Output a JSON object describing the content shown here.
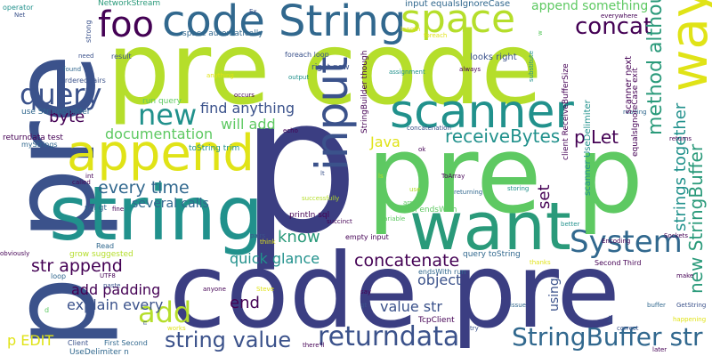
{
  "palette": {
    "dark_purple": "#440154",
    "indigo": "#3b528b",
    "slate_blue": "#31688e",
    "teal": "#21918c",
    "sea_green": "#2a9a7a",
    "green": "#5ec962",
    "lime": "#b5de2b",
    "yellow": "#e0e317"
  },
  "words": [
    {
      "text": "pre code",
      "color": "#b5de2b"
    },
    {
      "text": "code pre",
      "color": "#3b3e82"
    },
    {
      "text": "pre p",
      "color": "#5ec962"
    },
    {
      "text": "p",
      "color": "#3b3e82"
    },
    {
      "text": "p pre",
      "color": "#3b528b"
    },
    {
      "text": "string",
      "color": "#21918c"
    },
    {
      "text": "want",
      "color": "#2a9a7a"
    },
    {
      "text": "code String",
      "color": "#31688e"
    },
    {
      "text": "space",
      "color": "#b5de2b"
    },
    {
      "text": "way",
      "color": "#e0e317"
    },
    {
      "text": "foo",
      "color": "#440154"
    },
    {
      "text": "append",
      "color": "#e0e317"
    },
    {
      "text": "input",
      "color": "#3b528b"
    },
    {
      "text": "scanner",
      "color": "#21918c"
    },
    {
      "text": "query",
      "color": "#3b528b"
    },
    {
      "text": "new",
      "color": "#21918c"
    },
    {
      "text": "System",
      "color": "#31688e"
    },
    {
      "text": "returndata",
      "color": "#3b528b"
    },
    {
      "text": "StringBuffer str",
      "color": "#31688e"
    },
    {
      "text": "string value",
      "color": "#3b528b"
    },
    {
      "text": "add",
      "color": "#b5de2b"
    },
    {
      "text": "concat",
      "color": "#440154"
    },
    {
      "text": "method although",
      "color": "#2a9a7a"
    },
    {
      "text": "receiveBytes",
      "color": "#21918c"
    },
    {
      "text": "p Let",
      "color": "#440154"
    },
    {
      "text": "strings together",
      "color": "#21918c"
    },
    {
      "text": "new StringBuffer",
      "color": "#2a9a7a"
    },
    {
      "text": "concatenate",
      "color": "#440154"
    },
    {
      "text": "every time",
      "color": "#31688e"
    },
    {
      "text": "documentation",
      "color": "#5ec962"
    },
    {
      "text": "byte",
      "color": "#440154"
    },
    {
      "text": "find anything",
      "color": "#3b528b"
    },
    {
      "text": "will add",
      "color": "#5ec962"
    },
    {
      "text": "know",
      "color": "#2a9a7a"
    },
    {
      "text": "str append",
      "color": "#440154"
    },
    {
      "text": "quick glance",
      "color": "#21918c"
    },
    {
      "text": "Java",
      "color": "#e0e317"
    },
    {
      "text": "object",
      "color": "#3b528b"
    },
    {
      "text": "value str",
      "color": "#3b528b"
    },
    {
      "text": "end",
      "color": "#440154"
    },
    {
      "text": "add padding",
      "color": "#440154"
    },
    {
      "text": "explain every",
      "color": "#3b528b"
    },
    {
      "text": "p EDIT",
      "color": "#e0e317"
    },
    {
      "text": "several calls",
      "color": "#31688e"
    },
    {
      "text": "append something",
      "color": "#5ec962"
    },
    {
      "text": "NetworkStream",
      "color": "#2a9a7a"
    },
    {
      "text": "input equalsIgnoreCase",
      "color": "#31688e"
    },
    {
      "text": "Ex",
      "color": "#3b528b"
    },
    {
      "text": "space automatically",
      "color": "#31688e"
    },
    {
      "text": "foreach loop",
      "color": "#3b528b"
    },
    {
      "text": "right now",
      "color": "#3b528b"
    },
    {
      "text": "looks right",
      "color": "#3b528b"
    },
    {
      "text": "use StringBuilder",
      "color": "#31688e"
    },
    {
      "text": "returndata test",
      "color": "#440154"
    },
    {
      "text": "myStrings",
      "color": "#31688e"
    },
    {
      "text": "orderedpairs",
      "color": "#3b528b"
    },
    {
      "text": "result",
      "color": "#3b528b"
    },
    {
      "text": "run query",
      "color": "#5ec962"
    },
    {
      "text": "sql gt",
      "color": "#31688e"
    },
    {
      "text": "println sql",
      "color": "#440154"
    },
    {
      "text": "toString trim",
      "color": "#21918c"
    },
    {
      "text": "empty input",
      "color": "#440154"
    },
    {
      "text": "trim endsWith",
      "color": "#5ec962"
    },
    {
      "text": "query toString",
      "color": "#31688e"
    },
    {
      "text": "endsWith run",
      "color": "#31688e"
    },
    {
      "text": "TcpClient",
      "color": "#440154"
    },
    {
      "text": "First Second",
      "color": "#31688e"
    },
    {
      "text": "Second Third",
      "color": "#440154"
    },
    {
      "text": "UseDelimiter n",
      "color": "#31688e"
    },
    {
      "text": "Client",
      "color": "#3b528b"
    },
    {
      "text": "grow suggested",
      "color": "#b5de2b"
    },
    {
      "text": "Read",
      "color": "#31688e"
    },
    {
      "text": "UTF8",
      "color": "#440154"
    },
    {
      "text": "paste",
      "color": "#3b528b"
    },
    {
      "text": "fine",
      "color": "#440154"
    },
    {
      "text": "pairs",
      "color": "#3b528b"
    },
    {
      "text": "think",
      "color": "#e0e317"
    },
    {
      "text": "there'll",
      "color": "#440154"
    },
    {
      "text": "succinct",
      "color": "#440154"
    },
    {
      "text": "successfully",
      "color": "#b5de2b"
    },
    {
      "text": "ToArray",
      "color": "#440154"
    },
    {
      "text": "returning",
      "color": "#31688e"
    },
    {
      "text": "storing",
      "color": "#21918c"
    },
    {
      "text": "Encoding",
      "color": "#440154"
    },
    {
      "text": "Sockets",
      "color": "#440154"
    },
    {
      "text": "better",
      "color": "#21918c"
    },
    {
      "text": "thanks",
      "color": "#e0e317"
    },
    {
      "text": "make",
      "color": "#440154"
    },
    {
      "text": "buffer",
      "color": "#31688e"
    },
    {
      "text": "GetString",
      "color": "#3b528b"
    },
    {
      "text": "happening",
      "color": "#e0e317"
    },
    {
      "text": "correct",
      "color": "#3b528b"
    },
    {
      "text": "later",
      "color": "#440154"
    },
    {
      "text": "issue",
      "color": "#31688e"
    },
    {
      "text": "anyone",
      "color": "#440154"
    },
    {
      "text": "Steve",
      "color": "#e0e317"
    },
    {
      "text": "say",
      "color": "#440154"
    },
    {
      "text": "gt",
      "color": "#3b528b"
    },
    {
      "text": "works",
      "color": "#e0e317"
    },
    {
      "text": "try",
      "color": "#3b528b"
    },
    {
      "text": "d",
      "color": "#5ec962"
    },
    {
      "text": "loop",
      "color": "#31688e"
    },
    {
      "text": "obviously",
      "color": "#440154"
    },
    {
      "text": "called",
      "color": "#440154"
    },
    {
      "text": "int",
      "color": "#440154"
    },
    {
      "text": "operator",
      "color": "#21918c"
    },
    {
      "text": "Net",
      "color": "#3b528b"
    },
    {
      "text": "need",
      "color": "#3b528b"
    },
    {
      "text": "found",
      "color": "#31688e"
    },
    {
      "text": "echo",
      "color": "#440154"
    },
    {
      "text": "occurs",
      "color": "#440154"
    },
    {
      "text": "anything",
      "color": "#e0e317"
    },
    {
      "text": "output",
      "color": "#21918c"
    },
    {
      "text": "always",
      "color": "#440154"
    },
    {
      "text": "assignment",
      "color": "#21918c"
    },
    {
      "text": "length",
      "color": "#e0e317"
    },
    {
      "text": "foreach",
      "color": "#e0e317"
    },
    {
      "text": "concatenation",
      "color": "#3b528b"
    },
    {
      "text": "ok",
      "color": "#440154"
    },
    {
      "text": "everywhere",
      "color": "#440154"
    },
    {
      "text": "reading",
      "color": "#31688e"
    },
    {
      "text": "returns",
      "color": "#440154"
    },
    {
      "text": "variable",
      "color": "#5ec962"
    },
    {
      "text": "use",
      "color": "#b5de2b"
    },
    {
      "text": "array",
      "color": "#5ec962"
    },
    {
      "text": "lt",
      "color": "#3b528b"
    },
    {
      "text": "ls",
      "color": "#b5de2b"
    },
    {
      "text": "strong",
      "color": "#3b528b"
    },
    {
      "text": "substitute",
      "color": "#21918c"
    },
    {
      "text": "StringBuilder though",
      "color": "#440154"
    },
    {
      "text": "client ReceiveBufferSize",
      "color": "#440154"
    },
    {
      "text": "scanner UseDelimiter",
      "color": "#21918c"
    },
    {
      "text": "scanner next",
      "color": "#440154"
    },
    {
      "text": "equalsIgnoreCase exit",
      "color": "#440154"
    },
    {
      "text": "set",
      "color": "#440154"
    },
    {
      "text": "using",
      "color": "#3b528b"
    },
    {
      "text": "n",
      "color": "#3b528b"
    },
    {
      "text": "w",
      "color": "#5ec962"
    },
    {
      "text": "br",
      "color": "#3b528b"
    }
  ]
}
